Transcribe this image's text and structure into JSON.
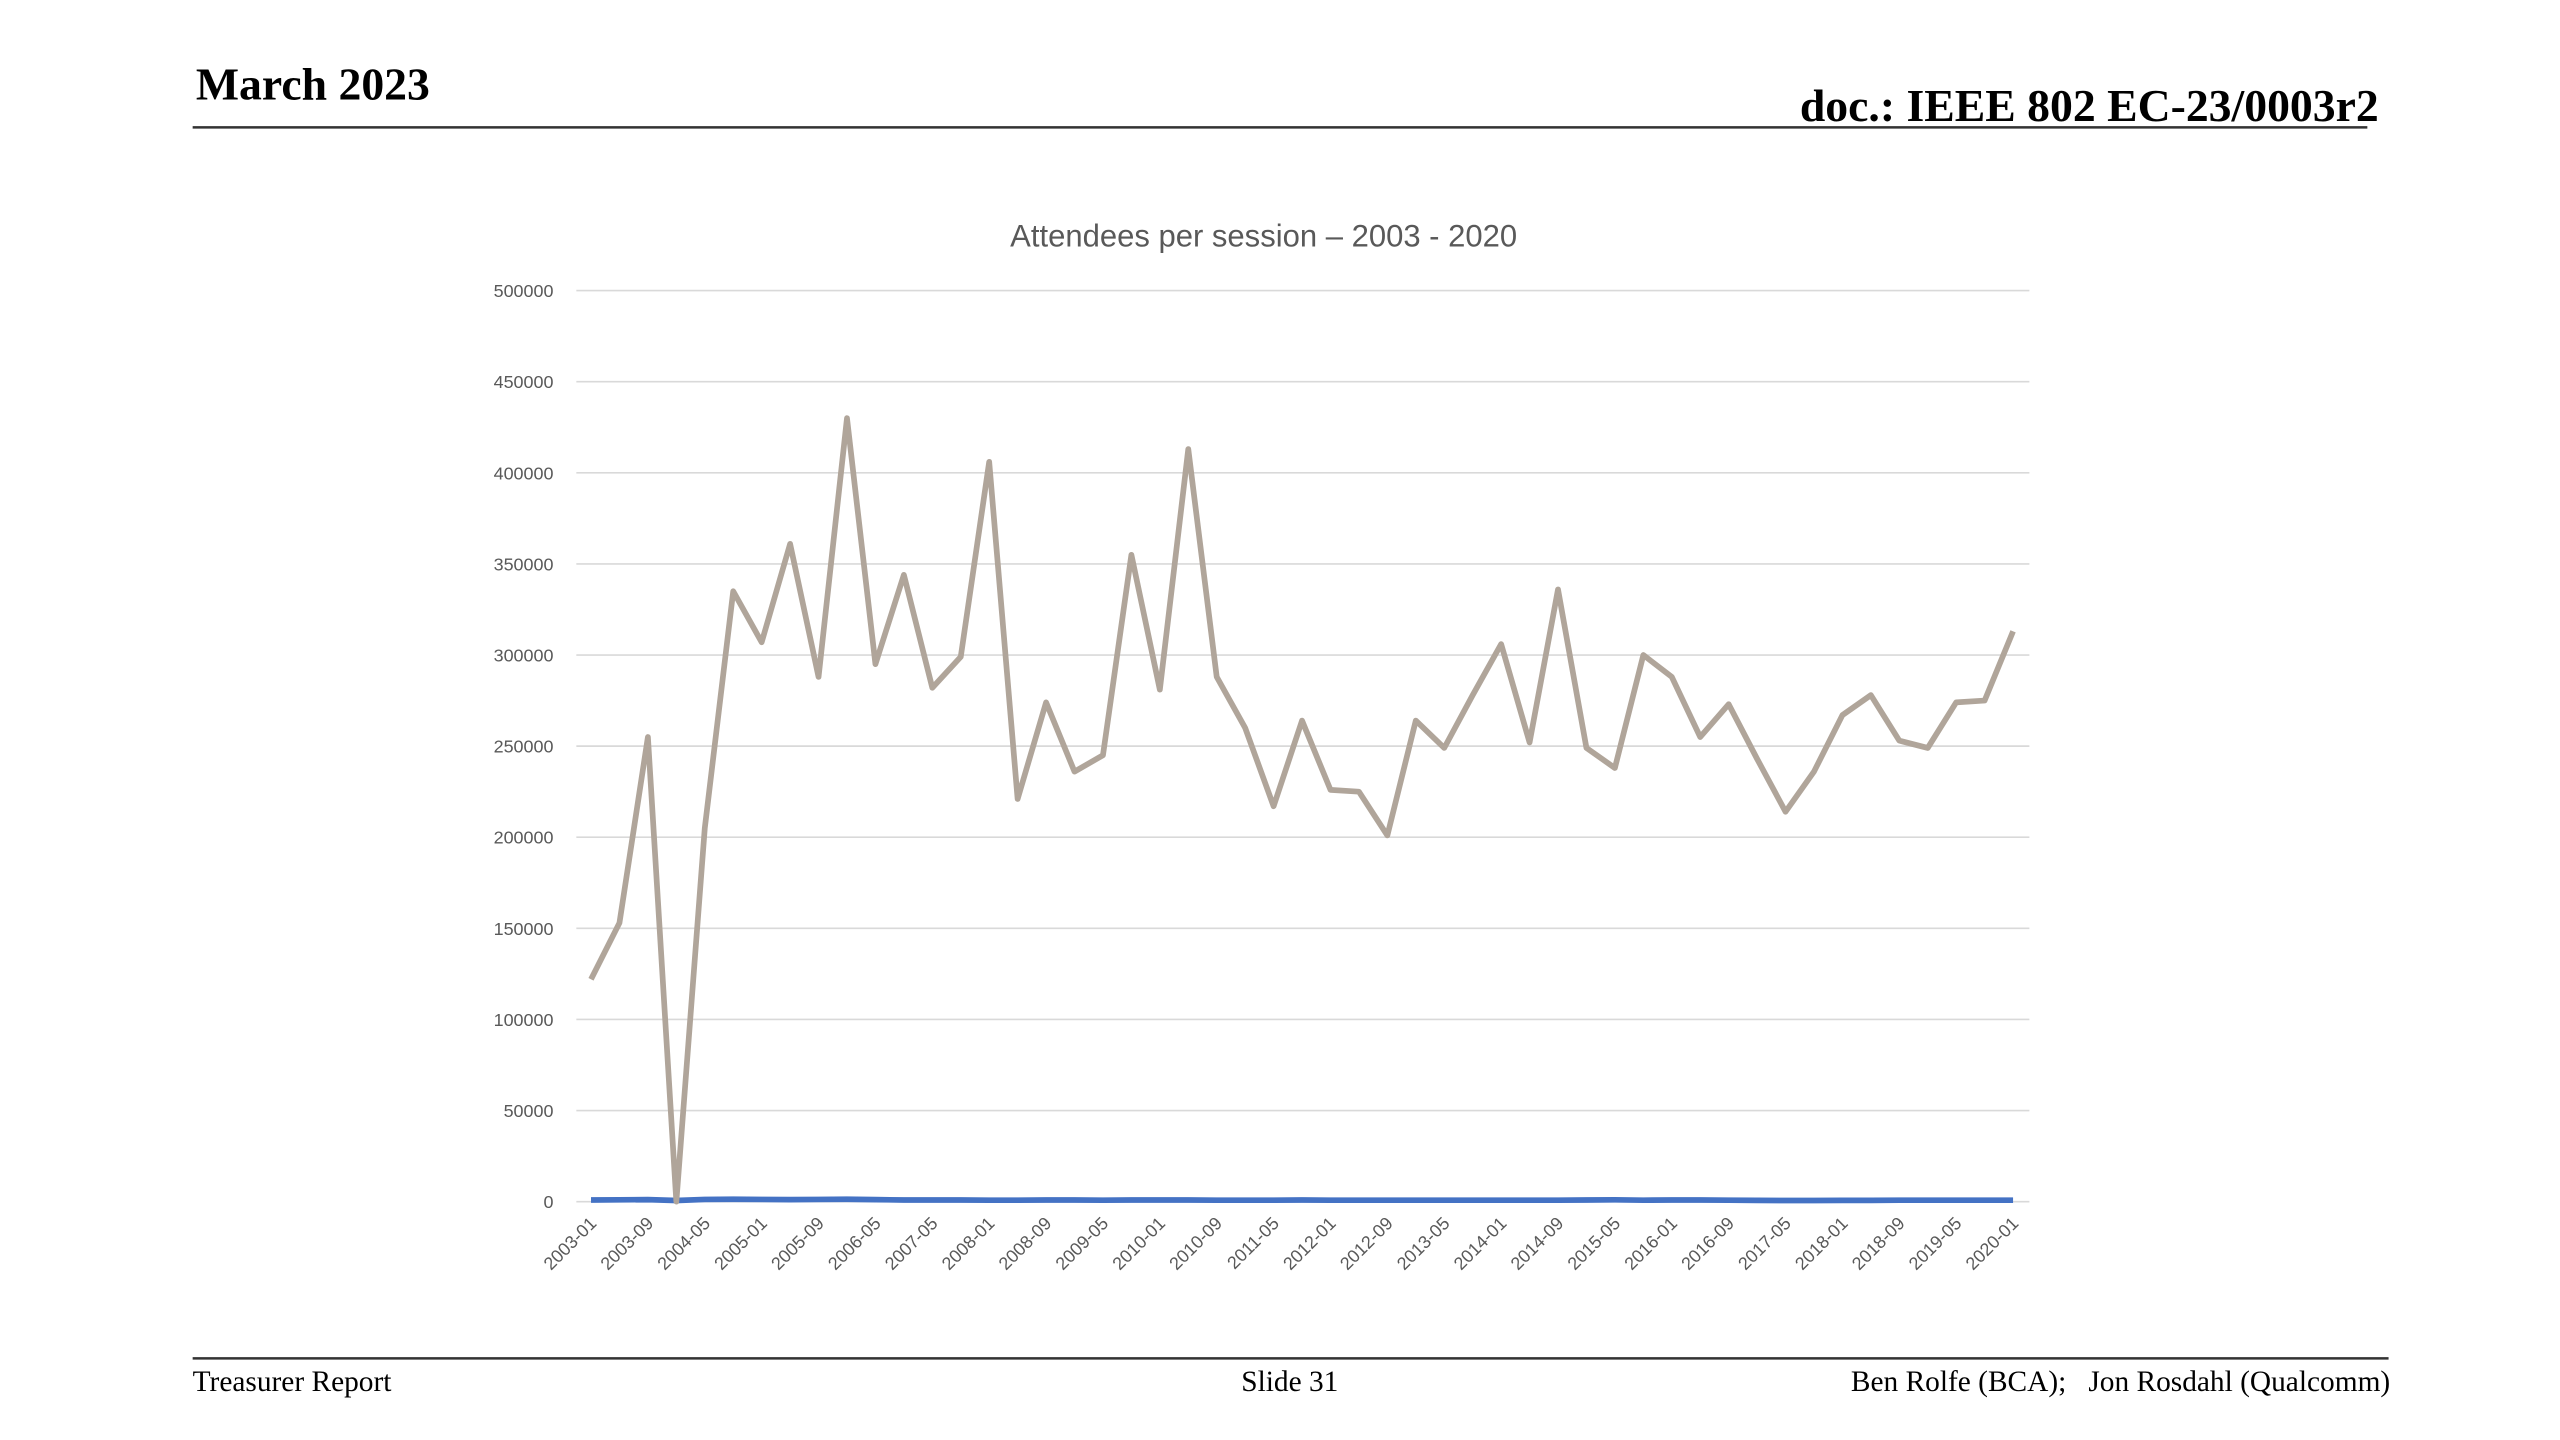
{
  "header": {
    "date": "March 2023",
    "doc": "doc.: IEEE 802 EC-23/0003r2"
  },
  "footer": {
    "left": "Treasurer Report",
    "center": "Slide 31",
    "right": "Ben Rolfe (BCA);   Jon Rosdahl (Qualcomm)"
  },
  "chart_data": {
    "type": "line",
    "title": "Attendees per session – 2003 - 2020",
    "categories": [
      "2003-01",
      null,
      "2003-09",
      null,
      "2004-05",
      null,
      "2005-01",
      null,
      "2005-09",
      null,
      "2006-05",
      null,
      "2007-05",
      null,
      "2008-01",
      null,
      "2008-09",
      null,
      "2009-05",
      null,
      "2010-01",
      null,
      "2010-09",
      null,
      "2011-05",
      null,
      "2012-01",
      null,
      "2012-09",
      null,
      "2013-05",
      null,
      "2014-01",
      null,
      "2014-09",
      null,
      "2015-05",
      null,
      "2016-01",
      null,
      "2016-09",
      null,
      "2017-05",
      null,
      "2018-01",
      null,
      "2018-09",
      null,
      "2019-05",
      null,
      "2020-01"
    ],
    "series": [
      {
        "color": "#4472c4",
        "values": [
          900,
          1000,
          1100,
          600,
          1200,
          1300,
          1200,
          1100,
          1200,
          1300,
          1100,
          900,
          900,
          900,
          800,
          800,
          900,
          900,
          800,
          900,
          900,
          900,
          800,
          800,
          800,
          900,
          800,
          800,
          800,
          800,
          800,
          800,
          800,
          800,
          800,
          900,
          1000,
          800,
          900,
          900,
          800,
          700,
          600,
          600,
          700,
          700,
          800,
          800,
          800,
          800,
          800
        ]
      },
      {
        "color": "#b0a59a",
        "values": [
          122000,
          153000,
          255000,
          0,
          205000,
          335000,
          307000,
          361000,
          288000,
          430000,
          295000,
          344000,
          282000,
          299000,
          406000,
          221000,
          274000,
          236000,
          245000,
          355000,
          281000,
          413000,
          288000,
          260000,
          217000,
          264000,
          226000,
          225000,
          201000,
          264000,
          249000,
          278000,
          306000,
          252000,
          336000,
          249000,
          238000,
          300000,
          288000,
          255000,
          273000,
          243000,
          214000,
          236000,
          267000,
          278000,
          253000,
          249000,
          274000,
          275000,
          313000
        ]
      }
    ],
    "ylim": [
      0,
      500000
    ],
    "yticks": [
      0,
      50000,
      100000,
      150000,
      200000,
      250000,
      300000,
      350000,
      400000,
      450000,
      500000
    ],
    "grid": true
  }
}
